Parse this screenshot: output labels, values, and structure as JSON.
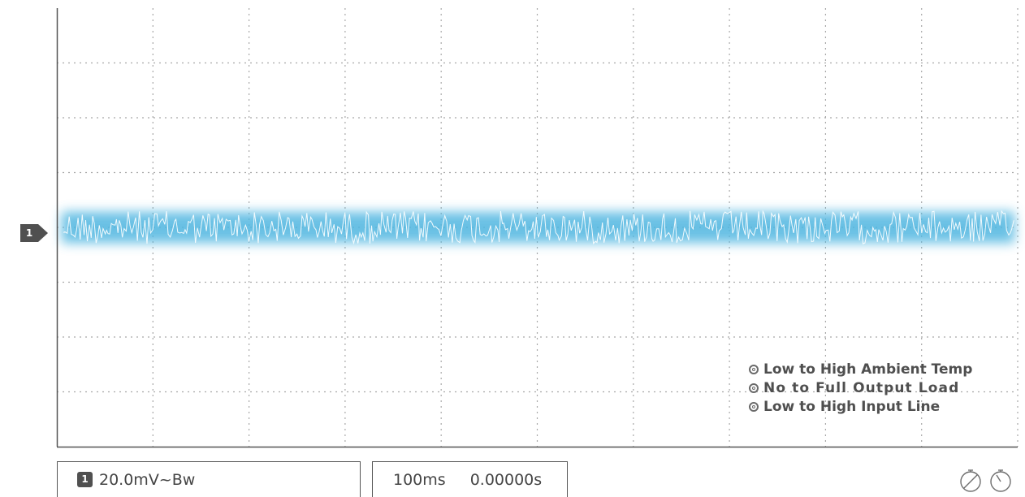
{
  "chart_data": {
    "type": "line",
    "title": "",
    "xlabel": "",
    "ylabel": "",
    "xlim": [
      0,
      10
    ],
    "ylim": [
      -4,
      4
    ],
    "grid": true,
    "grid_divisions": {
      "x": 10,
      "y": 8
    },
    "series": [
      {
        "channel": "1",
        "description": "ripple noise trace centered on channel 1 reference level",
        "amplitude_divisions": 0.3,
        "center_divisions": 0
      }
    ],
    "legend": {
      "placement": "bottom-right",
      "items": [
        "Low to High Ambient Temp",
        "No to Full Output Load",
        "Low to High Input Line"
      ]
    }
  },
  "channel_marker": "1",
  "status": {
    "channel_number": "1",
    "channel_scale": "20.0mV~Bw",
    "timebase": "100ms",
    "trigger_offset": "0.00000s"
  },
  "colors": {
    "trace_glow": "#4fb6e0",
    "trace_core": "#ffffff",
    "grid": "#a8a8a8",
    "axis": "#555555",
    "marker": "#505050"
  },
  "icons": [
    "stopwatch-slash-icon",
    "stopwatch-icon"
  ]
}
